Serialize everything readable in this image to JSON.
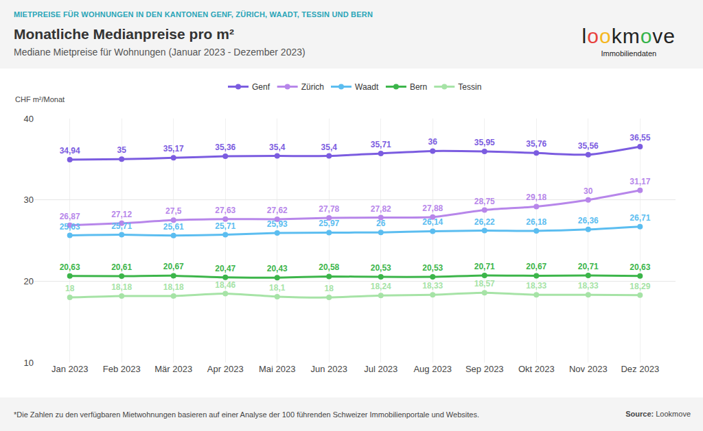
{
  "chart_data": {
    "type": "line",
    "kicker": "MIETPREISE FÜR WOHNUNGEN IN DEN KANTONEN GENF, ZÜRICH, WAADT, TESSIN UND BERN",
    "title": "Monatliche Medianpreise pro m²",
    "subtitle": "Mediane Mietpreise für Wohnungen (Januar 2023 - Dezember 2023)",
    "logo": {
      "text": "lookmove",
      "subtext": "Immobiliendaten"
    },
    "y_label": "CHF m²/Monat",
    "footnote": "*Die Zahlen zu den verfügbaren Mietwohnungen basieren auf einer Analyse der 100 führenden Schweizer Immobilienportale und Websites.",
    "source": {
      "label": "Source:",
      "text": "Lookmove"
    },
    "categories": [
      "Jan 2023",
      "Feb 2023",
      "Mär 2023",
      "Apr 2023",
      "Mai 2023",
      "Jun 2023",
      "Jul 2023",
      "Aug 2023",
      "Sep 2023",
      "Okt 2023",
      "Nov 2023",
      "Dez 2023"
    ],
    "series": [
      {
        "name": "Genf",
        "color": "#7b5ce0",
        "values": [
          34.94,
          35,
          35.17,
          35.36,
          35.4,
          35.4,
          35.71,
          36,
          35.95,
          35.76,
          35.56,
          36.55
        ],
        "value_labels": [
          "34,94",
          "35",
          "35,17",
          "35,36",
          "35,4",
          "35,4",
          "35,71",
          "36",
          "35,95",
          "35,76",
          "35,56",
          "36,55"
        ]
      },
      {
        "name": "Zürich",
        "color": "#b786ea",
        "values": [
          26.87,
          27.12,
          27.5,
          27.63,
          27.62,
          27.78,
          27.82,
          27.88,
          28.75,
          29.18,
          30,
          31.17
        ],
        "value_labels": [
          "26,87",
          "27,12",
          "27,5",
          "27,63",
          "27,62",
          "27,78",
          "27,82",
          "27,88",
          "28,75",
          "29,18",
          "30",
          "31,17"
        ]
      },
      {
        "name": "Waadt",
        "color": "#5bbdf0",
        "values": [
          25.63,
          25.71,
          25.61,
          25.71,
          25.93,
          25.97,
          26,
          26.14,
          26.22,
          26.18,
          26.36,
          26.71
        ],
        "value_labels": [
          "25,63",
          "25,71",
          "25,61",
          "25,71",
          "25,93",
          "25,97",
          "26",
          "26,14",
          "26,22",
          "26,18",
          "26,36",
          "26,71"
        ]
      },
      {
        "name": "Bern",
        "color": "#3cb54a",
        "values": [
          20.63,
          20.61,
          20.67,
          20.47,
          20.43,
          20.58,
          20.53,
          20.53,
          20.71,
          20.67,
          20.71,
          20.63
        ],
        "value_labels": [
          "20,63",
          "20,61",
          "20,67",
          "20,47",
          "20,43",
          "20,58",
          "20,53",
          "20,53",
          "20,71",
          "20,67",
          "20,71",
          "20,63"
        ]
      },
      {
        "name": "Tessin",
        "color": "#a6e3a6",
        "values": [
          18,
          18.18,
          18.18,
          18.46,
          18.1,
          18,
          18.24,
          18.33,
          18.57,
          18.33,
          18.33,
          18.29
        ],
        "value_labels": [
          "18",
          "18,18",
          "18,18",
          "18,46",
          "18,1",
          "18",
          "18,24",
          "18,33",
          "18,57",
          "18,33",
          "18,33",
          "18,29"
        ]
      }
    ],
    "ylim": [
      10,
      40
    ],
    "yticks": [
      10,
      20,
      30,
      40
    ],
    "grid": true,
    "legend": "top",
    "marker": "circle",
    "data_labels": true
  }
}
